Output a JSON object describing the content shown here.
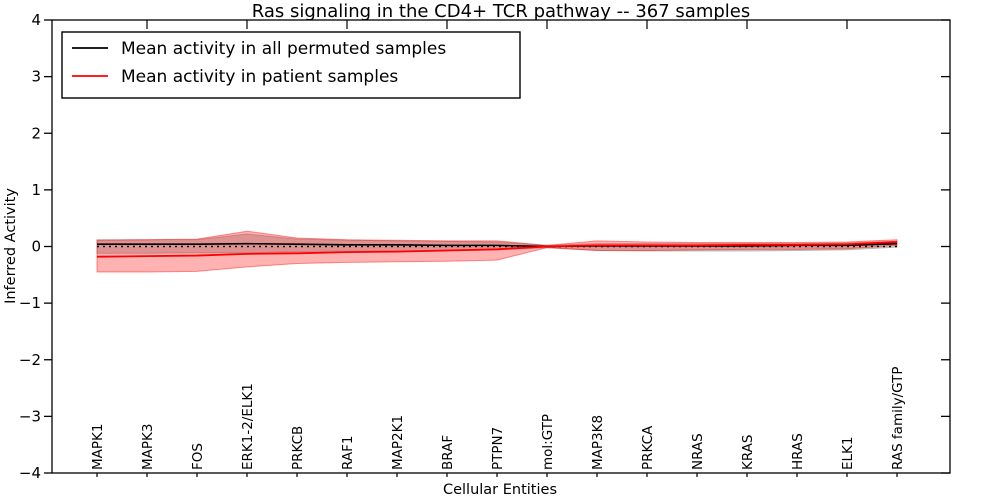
{
  "figure": {
    "title": "Ras signaling in the CD4+ TCR pathway -- 367 samples",
    "xlabel": "Cellular Entities",
    "ylabel": "Inferred Activity",
    "legend_items": [
      {
        "label": "Mean activity in all permuted samples",
        "color": "#000000"
      },
      {
        "label": "Mean activity in patient samples",
        "color": "#ff0000"
      }
    ]
  },
  "chart_data": {
    "type": "line",
    "title": "Ras signaling in the CD4+ TCR pathway -- 367 samples",
    "xlabel": "Cellular Entities",
    "ylabel": "Inferred Activity",
    "ylim": [
      -4,
      4
    ],
    "ytick_values": [
      4,
      3,
      2,
      1,
      0,
      -1,
      -2,
      -3,
      -4
    ],
    "ytick_labels": [
      "4",
      "3",
      "2",
      "1",
      "0",
      "−1",
      "−2",
      "−3",
      "−4"
    ],
    "grid": false,
    "legend_position": "upper left",
    "categories": [
      "MAPK1",
      "MAPK3",
      "FOS",
      "ERK1-2/ELK1",
      "PRKCB",
      "RAF1",
      "MAP2K1",
      "BRAF",
      "PTPN7",
      "mol:GTP",
      "MAP3K8",
      "PRKCA",
      "NRAS",
      "KRAS",
      "HRAS",
      "ELK1",
      "RAS family/GTP"
    ],
    "series": [
      {
        "name": "Mean activity in all permuted samples",
        "color": "#000000",
        "values": [
          0.04,
          0.04,
          0.04,
          0.05,
          0.04,
          0.03,
          0.03,
          0.02,
          0.02,
          0.0,
          0.01,
          0.01,
          0.01,
          0.01,
          0.02,
          0.02,
          0.05
        ]
      },
      {
        "name": "Mean activity in patient samples",
        "color": "#ff0000",
        "values": [
          -0.18,
          -0.17,
          -0.16,
          -0.13,
          -0.12,
          -0.1,
          -0.09,
          -0.07,
          -0.05,
          0.0,
          0.02,
          0.02,
          0.02,
          0.03,
          0.03,
          0.04,
          0.08
        ]
      }
    ],
    "bands": [
      {
        "name": "permuted-samples-range",
        "color": "#888888",
        "opacity": 0.38,
        "upper": [
          0.12,
          0.12,
          0.12,
          0.22,
          0.13,
          0.11,
          0.1,
          0.09,
          0.08,
          0.02,
          0.05,
          0.05,
          0.05,
          0.05,
          0.05,
          0.06,
          0.09
        ],
        "lower": [
          -0.12,
          -0.12,
          -0.11,
          -0.11,
          -0.09,
          -0.08,
          -0.08,
          -0.07,
          -0.06,
          -0.02,
          -0.07,
          -0.08,
          -0.08,
          -0.08,
          -0.07,
          -0.06,
          -0.01
        ]
      },
      {
        "name": "patient-samples-range",
        "color": "#ff0000",
        "opacity": 0.3,
        "upper": [
          0.11,
          0.12,
          0.13,
          0.27,
          0.15,
          0.12,
          0.11,
          0.1,
          0.1,
          0.02,
          0.1,
          0.08,
          0.07,
          0.07,
          0.07,
          0.08,
          0.12
        ],
        "lower": [
          -0.45,
          -0.45,
          -0.44,
          -0.36,
          -0.3,
          -0.28,
          -0.27,
          -0.26,
          -0.24,
          -0.02,
          -0.07,
          -0.07,
          -0.06,
          -0.05,
          -0.05,
          -0.04,
          0.02
        ]
      }
    ],
    "zero_line": {
      "value": 0,
      "style": "dotted",
      "color": "#000000"
    }
  }
}
